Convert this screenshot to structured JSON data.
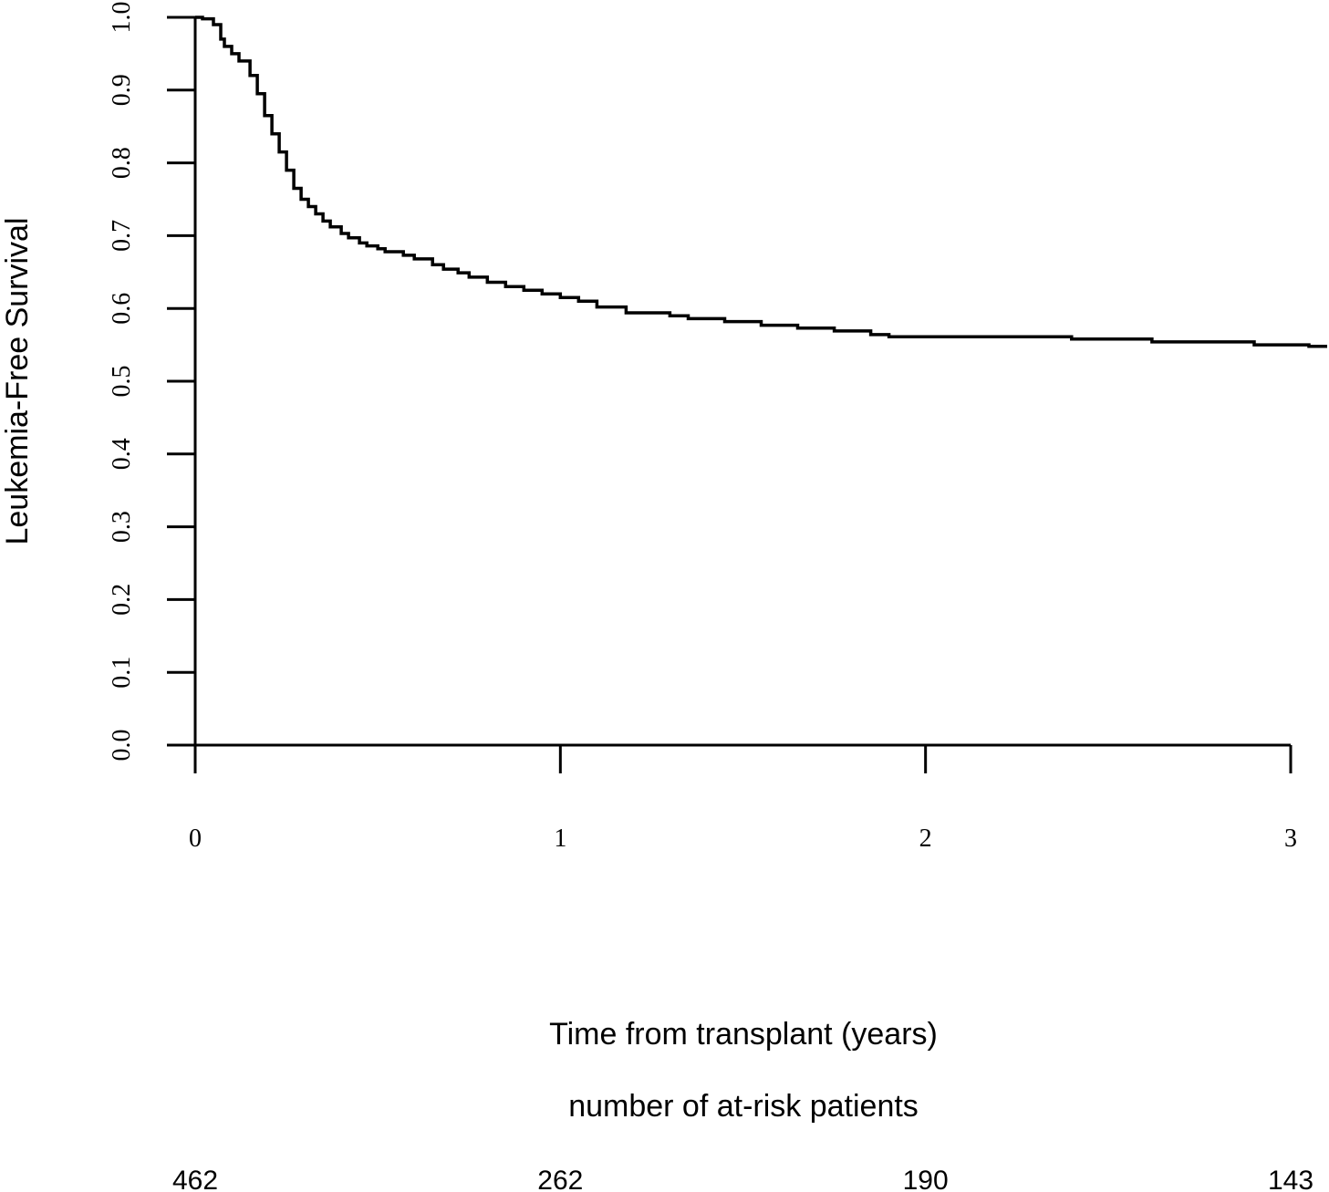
{
  "chart_data": {
    "type": "line",
    "title": "",
    "xlabel": "Time from transplant (years)",
    "ylabel": "Leukemia-Free Survival",
    "xlim": [
      0,
      3.1
    ],
    "ylim": [
      0,
      1.0
    ],
    "xticks": [
      0,
      1,
      2,
      3
    ],
    "xtick_labels": [
      "0",
      "1",
      "2",
      "3"
    ],
    "yticks": [
      0.0,
      0.1,
      0.2,
      0.3,
      0.4,
      0.5,
      0.6,
      0.7,
      0.8,
      0.9,
      1.0
    ],
    "ytick_labels": [
      "0.0",
      "0.1",
      "0.2",
      "0.3",
      "0.4",
      "0.5",
      "0.6",
      "0.7",
      "0.8",
      "0.9",
      "1.0"
    ],
    "grid": false,
    "legend": "none",
    "step": true,
    "line_color": "#000000",
    "series": [
      {
        "x": [
          0,
          0.02,
          0.05,
          0.07,
          0.08,
          0.1,
          0.12,
          0.15,
          0.17,
          0.19,
          0.21,
          0.23,
          0.25,
          0.27,
          0.29,
          0.31,
          0.33,
          0.35,
          0.37,
          0.4,
          0.42,
          0.45,
          0.47,
          0.5,
          0.52,
          0.57,
          0.6,
          0.65,
          0.68,
          0.72,
          0.75,
          0.8,
          0.85,
          0.9,
          0.95,
          1.0,
          1.05,
          1.1,
          1.18,
          1.3,
          1.35,
          1.45,
          1.55,
          1.65,
          1.75,
          1.85,
          1.9,
          2.05,
          2.4,
          2.62,
          2.9,
          3.05,
          3.1
        ],
        "y": [
          1.0,
          0.998,
          0.99,
          0.97,
          0.96,
          0.95,
          0.94,
          0.92,
          0.895,
          0.865,
          0.84,
          0.815,
          0.79,
          0.765,
          0.75,
          0.74,
          0.73,
          0.72,
          0.712,
          0.703,
          0.697,
          0.69,
          0.686,
          0.682,
          0.678,
          0.673,
          0.668,
          0.66,
          0.654,
          0.649,
          0.643,
          0.636,
          0.63,
          0.625,
          0.62,
          0.615,
          0.61,
          0.602,
          0.594,
          0.59,
          0.586,
          0.582,
          0.577,
          0.573,
          0.569,
          0.564,
          0.561,
          0.561,
          0.558,
          0.554,
          0.55,
          0.548,
          0.548
        ]
      }
    ]
  },
  "at_risk": {
    "title": "number of at-risk patients",
    "times": [
      0,
      1,
      2,
      3
    ],
    "counts": [
      "462",
      "262",
      "190",
      "143"
    ]
  }
}
